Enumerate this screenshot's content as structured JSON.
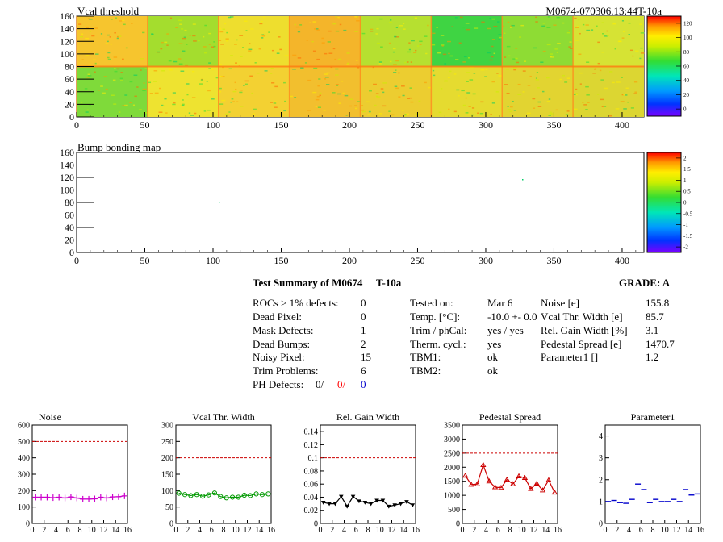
{
  "heatmaps": {
    "vcal": {
      "title": "Vcal threshold",
      "module_id": "M0674-070306.13:44T-10a",
      "xlim": [
        0,
        416
      ],
      "ylim": [
        0,
        160
      ],
      "xticks": [
        0,
        50,
        100,
        150,
        200,
        250,
        300,
        350,
        400
      ],
      "yticks": [
        0,
        20,
        40,
        60,
        80,
        100,
        120,
        140,
        160
      ],
      "z_ticks": [
        0,
        20,
        40,
        60,
        80,
        100,
        120
      ]
    },
    "bump": {
      "title": "Bump bonding map",
      "xlim": [
        0,
        416
      ],
      "ylim": [
        0,
        160
      ],
      "xticks": [
        0,
        50,
        100,
        150,
        200,
        250,
        300,
        350,
        400
      ],
      "yticks": [
        0,
        20,
        40,
        60,
        80,
        100,
        120,
        140,
        160
      ],
      "z_ticks": [
        "-2",
        "-1.5",
        "-1",
        "-0.5",
        "0",
        "0.5",
        "1",
        "1.5",
        "2"
      ]
    }
  },
  "summary": {
    "title": "Test Summary of M0674",
    "tag": "T-10a",
    "grade": "GRADE:  A",
    "left": [
      {
        "label": "ROCs > 1% defects:",
        "value": "0"
      },
      {
        "label": "Dead Pixel:",
        "value": "0"
      },
      {
        "label": "Mask Defects:",
        "value": "1"
      },
      {
        "label": "Dead Bumps:",
        "value": "2"
      },
      {
        "label": "Noisy Pixel:",
        "value": "15"
      },
      {
        "label": "Trim Problems:",
        "value": "6"
      }
    ],
    "ph": {
      "label": "PH Defects:",
      "v1": "0/",
      "v2": "0/",
      "v3": "0",
      "c2": "#ff0000",
      "c3": "#0000cc"
    },
    "mid": [
      {
        "label": "Tested on:",
        "value": "Mar 6"
      },
      {
        "label": "Temp. [°C]:",
        "value": "-10.0 +- 0.0"
      },
      {
        "label": "Trim / phCal:",
        "value": "yes / yes"
      },
      {
        "label": "Therm. cycl.:",
        "value": "yes"
      },
      {
        "label": "TBM1:",
        "value": "ok"
      },
      {
        "label": "TBM2:",
        "value": "ok"
      }
    ],
    "right": [
      {
        "label": "Noise [e]",
        "value": "155.8"
      },
      {
        "label": "Vcal Thr. Width [e]",
        "value": "85.7"
      },
      {
        "label": "Rel. Gain Width [%]",
        "value": "3.1"
      },
      {
        "label": "Pedestal Spread [e]",
        "value": "1470.7"
      },
      {
        "label": "Parameter1 []",
        "value": "1.2"
      }
    ]
  },
  "chart_data": [
    {
      "type": "line",
      "title": "Noise",
      "color": "#cc00cc",
      "marker": "cross",
      "ylim": [
        0,
        600
      ],
      "yticks": [
        "0",
        "100",
        "200",
        "300",
        "400",
        "500",
        "600"
      ],
      "xticks": [
        "0",
        "2",
        "4",
        "6",
        "8",
        "10",
        "12",
        "14",
        "16"
      ],
      "xlim": [
        0,
        16
      ],
      "limit": 500,
      "values": [
        160,
        160,
        160,
        157,
        160,
        155,
        162,
        155,
        148,
        148,
        150,
        160,
        155,
        162,
        163,
        168
      ]
    },
    {
      "type": "line",
      "title": "Vcal Thr. Width",
      "color": "#009900",
      "marker": "circle",
      "ylim": [
        0,
        300
      ],
      "yticks": [
        "0",
        "50",
        "100",
        "150",
        "200",
        "250",
        "300"
      ],
      "xticks": [
        "0",
        "2",
        "4",
        "6",
        "8",
        "10",
        "12",
        "14",
        "16"
      ],
      "xlim": [
        0,
        16
      ],
      "limit": 200,
      "values": [
        92,
        88,
        85,
        88,
        83,
        87,
        93,
        82,
        78,
        80,
        80,
        86,
        85,
        90,
        88,
        90
      ]
    },
    {
      "type": "line",
      "title": "Rel. Gain Width",
      "color": "#000000",
      "marker": "triangle-down",
      "ylim": [
        0,
        0.15
      ],
      "yticks": [
        "0",
        "0.02",
        "0.04",
        "0.06",
        "0.08",
        "0.1",
        "0.12",
        "0.14"
      ],
      "xticks": [
        "0",
        "2",
        "4",
        "6",
        "8",
        "10",
        "12",
        "14",
        "16"
      ],
      "xlim": [
        0,
        16
      ],
      "limit": 0.1,
      "values": [
        0.032,
        0.03,
        0.03,
        0.041,
        0.026,
        0.041,
        0.034,
        0.032,
        0.03,
        0.035,
        0.035,
        0.026,
        0.028,
        0.03,
        0.033,
        0.028
      ]
    },
    {
      "type": "line",
      "title": "Pedestal Spread",
      "color": "#cc0000",
      "marker": "triangle-up",
      "ylim": [
        0,
        3500
      ],
      "yticks": [
        "0",
        "500",
        "1000",
        "1500",
        "2000",
        "2500",
        "3000",
        "3500"
      ],
      "xticks": [
        "0",
        "2",
        "4",
        "6",
        "8",
        "10",
        "12",
        "14",
        "16"
      ],
      "xlim": [
        0,
        16
      ],
      "limit": 2500,
      "values": [
        1700,
        1380,
        1400,
        2080,
        1500,
        1290,
        1270,
        1560,
        1400,
        1680,
        1620,
        1230,
        1420,
        1180,
        1540,
        1100
      ]
    },
    {
      "type": "scatter",
      "title": "Parameter1",
      "color": "#0000cc",
      "marker": "hline",
      "ylim": [
        0,
        4.5
      ],
      "yticks": [
        "0",
        "1",
        "2",
        "3",
        "4"
      ],
      "xticks": [
        "0",
        "2",
        "4",
        "6",
        "8",
        "10",
        "12",
        "14",
        "16"
      ],
      "xlim": [
        0,
        16
      ],
      "values": [
        1.0,
        1.05,
        0.95,
        0.92,
        1.1,
        1.8,
        1.55,
        0.95,
        1.1,
        1.0,
        1.0,
        1.1,
        1.0,
        1.55,
        1.3,
        1.35
      ]
    }
  ]
}
